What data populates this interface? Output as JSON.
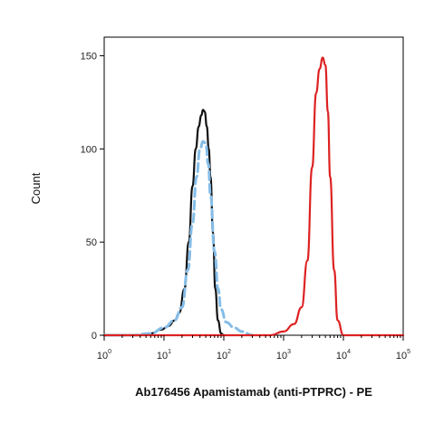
{
  "chart_data": {
    "type": "line",
    "title": "",
    "xlabel": "Ab176456 Apamistamab (anti-PTPRC) - PE",
    "ylabel": "Count",
    "x_scale": "log",
    "xlim": [
      1,
      100000
    ],
    "ylim": [
      0,
      160
    ],
    "x_ticks": [
      1,
      10,
      100,
      1000,
      10000,
      100000
    ],
    "x_tick_base": "10",
    "x_tick_exponents": [
      "0",
      "1",
      "2",
      "3",
      "4",
      "5"
    ],
    "y_ticks": [
      0,
      50,
      100,
      150
    ],
    "y_tick_labels": [
      "0",
      "50",
      "100",
      "150"
    ],
    "grid": false,
    "legend": "none",
    "series": [
      {
        "color": "#111111",
        "style": "solid",
        "x": [
          1,
          2,
          3,
          4,
          6,
          9,
          12,
          15,
          18,
          22,
          26,
          30,
          34,
          38,
          42,
          45,
          48,
          52,
          56,
          60,
          66,
          72,
          80,
          90,
          100
        ],
        "y": [
          0,
          0,
          0,
          0,
          1,
          3,
          5,
          8,
          12,
          25,
          50,
          80,
          100,
          112,
          118,
          121,
          120,
          112,
          100,
          85,
          55,
          25,
          8,
          1,
          0
        ]
      },
      {
        "color": "#85bde8",
        "style": "dashed",
        "x": [
          1,
          3,
          6,
          10,
          15,
          20,
          25,
          30,
          35,
          40,
          45,
          50,
          55,
          60,
          70,
          80,
          90,
          110,
          150,
          200,
          300
        ],
        "y": [
          0,
          0,
          1,
          4,
          8,
          15,
          35,
          60,
          85,
          100,
          104,
          103,
          92,
          75,
          45,
          25,
          14,
          7,
          4,
          2,
          0
        ]
      },
      {
        "color": "#dd2222",
        "style": "solid",
        "x": [
          1,
          100,
          600,
          1000,
          1500,
          2000,
          2500,
          3000,
          3500,
          4000,
          4500,
          5000,
          5500,
          6000,
          7000,
          8000,
          10000,
          100000
        ],
        "y": [
          0,
          0,
          0,
          2,
          6,
          15,
          40,
          90,
          130,
          143,
          149,
          145,
          120,
          85,
          35,
          8,
          0,
          0
        ]
      }
    ]
  }
}
